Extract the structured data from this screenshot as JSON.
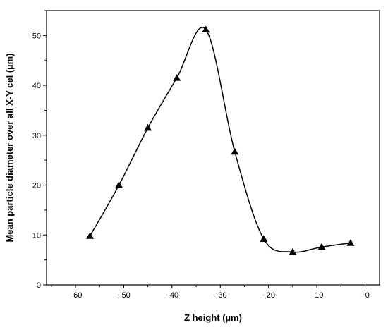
{
  "chart_data": {
    "type": "line",
    "title": "",
    "xlabel": "Z height (µm)",
    "ylabel": "Mean particle diameter over all X-Y cel (µm)",
    "xlim": [
      -66,
      3
    ],
    "ylim": [
      0,
      55
    ],
    "x_ticks": [
      -60,
      -50,
      -40,
      -30,
      -20,
      -10,
      0
    ],
    "x_tick_labels": [
      "−60",
      "−50",
      "−40",
      "−30",
      "−20",
      "−10",
      "−0"
    ],
    "y_ticks": [
      0,
      10,
      20,
      30,
      40,
      50
    ],
    "y_tick_labels": [
      "0",
      "10",
      "20",
      "30",
      "40",
      "50"
    ],
    "grid": false,
    "marker": "triangle",
    "line_style": "smooth",
    "colors": {
      "line": "#000000",
      "marker": "#000000"
    },
    "series": [
      {
        "x": [
          -57,
          -51,
          -45,
          -39,
          -33,
          -27,
          -21,
          -15,
          -9,
          -3
        ],
        "y": [
          9.8,
          20.0,
          31.5,
          41.5,
          51.2,
          26.7,
          9.2,
          6.6,
          7.6,
          8.4
        ]
      }
    ]
  }
}
